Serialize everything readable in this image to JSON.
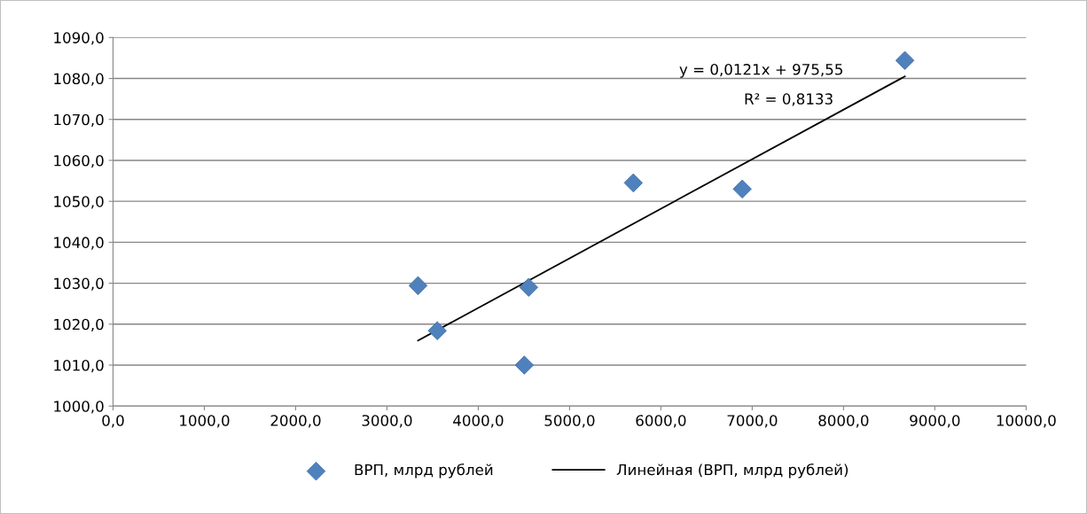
{
  "chart_data": {
    "type": "scatter",
    "series": [
      {
        "name": "ВРП, млрд рублей",
        "color": "#4f81bd",
        "marker": "diamond",
        "x": [
          3340,
          3551,
          4504,
          4552,
          5698,
          6891,
          8672
        ],
        "values": [
          1029.4,
          1018.4,
          1010.0,
          1029.0,
          1054.5,
          1053.0,
          1084.4
        ]
      },
      {
        "name": "Линейная (ВРП, млрд рублей)",
        "type": "line",
        "color": "#000000",
        "line_style": "solid",
        "x": [
          3340,
          8672
        ],
        "values": [
          1016.0,
          1080.5
        ]
      }
    ],
    "annotations": [
      "y = 0,0121x + 975,55",
      "R² = 0,8133"
    ],
    "xlim": [
      0,
      10000
    ],
    "xticks": [
      {
        "value": 0,
        "label": "0,0"
      },
      {
        "value": 1000,
        "label": "1000,0"
      },
      {
        "value": 2000,
        "label": "2000,0"
      },
      {
        "value": 3000,
        "label": "3000,0"
      },
      {
        "value": 4000,
        "label": "4000,0"
      },
      {
        "value": 5000,
        "label": "5000,0"
      },
      {
        "value": 6000,
        "label": "6000,0"
      },
      {
        "value": 7000,
        "label": "7000,0"
      },
      {
        "value": 8000,
        "label": "8000,0"
      },
      {
        "value": 9000,
        "label": "9000,0"
      },
      {
        "value": 10000,
        "label": "10000,0"
      }
    ],
    "ylim": [
      1000,
      1090
    ],
    "yticks": [
      {
        "value": 1000,
        "label": "1000,0"
      },
      {
        "value": 1010,
        "label": "1010,0"
      },
      {
        "value": 1020,
        "label": "1020,0"
      },
      {
        "value": 1030,
        "label": "1030,0"
      },
      {
        "value": 1040,
        "label": "1040,0"
      },
      {
        "value": 1050,
        "label": "1050,0"
      },
      {
        "value": 1060,
        "label": "1060,0"
      },
      {
        "value": 1070,
        "label": "1070,0"
      },
      {
        "value": 1080,
        "label": "1080,0"
      },
      {
        "value": 1090,
        "label": "1090,0"
      }
    ],
    "grid": "y",
    "legend": "bottom"
  }
}
